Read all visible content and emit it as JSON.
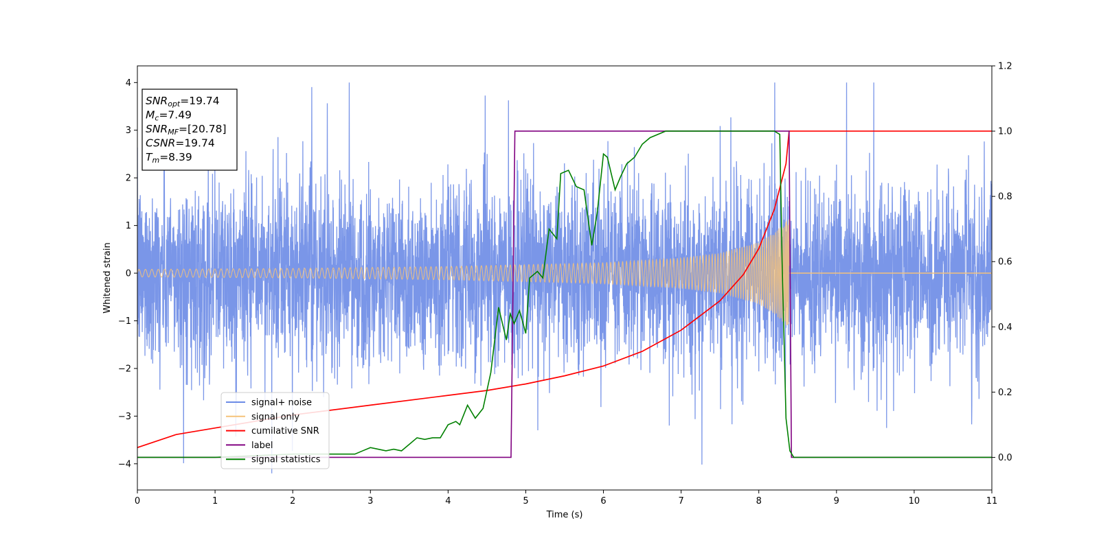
{
  "chart_data": {
    "type": "line",
    "xlabel": "Time (s)",
    "ylabel": "Whitened strain",
    "xlim": [
      0,
      11
    ],
    "ylim": [
      -4.55,
      4.35
    ],
    "y2lim": [
      -0.1,
      1.2
    ],
    "grid": false,
    "x_ticks": [
      "0",
      "1",
      "2",
      "3",
      "4",
      "5",
      "6",
      "7",
      "8",
      "9",
      "10",
      "11"
    ],
    "y_ticks": [
      "4",
      "3",
      "2",
      "1",
      "0",
      "−1",
      "−2",
      "−3",
      "−4"
    ],
    "y2_ticks": [
      "1.2",
      "1.0",
      "0.8",
      "0.6",
      "0.4",
      "0.2",
      "0.0"
    ],
    "legend_position": "lower-left",
    "annotation": [
      {
        "sym": "SNR",
        "sub": "opt",
        "value": "=19.74"
      },
      {
        "sym": "M",
        "sub": "c",
        "value": "=7.49"
      },
      {
        "sym": "SNR",
        "sub": "MF",
        "value": "=[20.78]"
      },
      {
        "sym": "CSNR",
        "sub": "",
        "value": "=19.74"
      },
      {
        "sym": "T",
        "sub": "m",
        "value": "=8.39"
      }
    ],
    "series": [
      {
        "name": "signal+ noise",
        "axis": "left",
        "color": "#6b8be6",
        "description_values": {
          "approx_range": [
            -4.2,
            4.0
          ],
          "mean": 0
        }
      },
      {
        "name": "signal only",
        "axis": "left",
        "color": "#f5c27a",
        "envelope": {
          "t": [
            0,
            2,
            4,
            6,
            7,
            7.5,
            8,
            8.2,
            8.39
          ],
          "amplitude": [
            0.08,
            0.1,
            0.14,
            0.22,
            0.32,
            0.42,
            0.65,
            0.85,
            1.15
          ]
        }
      },
      {
        "name": "cumilative SNR",
        "axis": "right",
        "color": "#ff0000",
        "x": [
          0,
          0.5,
          1,
          2,
          3,
          4,
          4.5,
          5,
          5.5,
          6,
          6.5,
          7,
          7.5,
          7.8,
          8.0,
          8.2,
          8.35,
          8.39,
          11
        ],
        "y": [
          0.03,
          0.07,
          0.09,
          0.13,
          0.16,
          0.19,
          0.205,
          0.225,
          0.25,
          0.28,
          0.325,
          0.39,
          0.48,
          0.56,
          0.64,
          0.76,
          0.9,
          1.0,
          1.0
        ]
      },
      {
        "name": "label",
        "axis": "right",
        "color": "#800080",
        "x": [
          0,
          4.81,
          4.86,
          8.39,
          8.42,
          11
        ],
        "y": [
          0,
          0,
          1,
          1,
          0,
          0
        ]
      },
      {
        "name": "signal statistics",
        "axis": "right",
        "color": "#008000",
        "x": [
          0,
          1,
          2,
          2.8,
          2.9,
          3.0,
          3.1,
          3.2,
          3.3,
          3.4,
          3.5,
          3.6,
          3.7,
          3.8,
          3.9,
          4.0,
          4.1,
          4.15,
          4.25,
          4.35,
          4.45,
          4.55,
          4.65,
          4.75,
          4.8,
          4.85,
          4.92,
          5.0,
          5.05,
          5.15,
          5.22,
          5.3,
          5.4,
          5.45,
          5.55,
          5.65,
          5.75,
          5.85,
          5.92,
          6.0,
          6.05,
          6.15,
          6.22,
          6.3,
          6.4,
          6.5,
          6.6,
          6.7,
          6.8,
          7.0,
          7.5,
          8.0,
          8.2,
          8.27,
          8.3,
          8.35,
          8.4,
          8.45,
          8.5,
          11
        ],
        "y": [
          0.0,
          0.0,
          0.01,
          0.01,
          0.02,
          0.03,
          0.025,
          0.02,
          0.025,
          0.02,
          0.04,
          0.06,
          0.055,
          0.06,
          0.06,
          0.1,
          0.11,
          0.1,
          0.16,
          0.12,
          0.15,
          0.26,
          0.46,
          0.36,
          0.44,
          0.41,
          0.45,
          0.38,
          0.55,
          0.57,
          0.55,
          0.7,
          0.67,
          0.87,
          0.88,
          0.83,
          0.82,
          0.65,
          0.75,
          0.93,
          0.92,
          0.82,
          0.86,
          0.9,
          0.92,
          0.96,
          0.98,
          0.99,
          1.0,
          1.0,
          1.0,
          1.0,
          1.0,
          0.99,
          0.6,
          0.12,
          0.02,
          0.0,
          0.0,
          0.0
        ]
      }
    ]
  }
}
